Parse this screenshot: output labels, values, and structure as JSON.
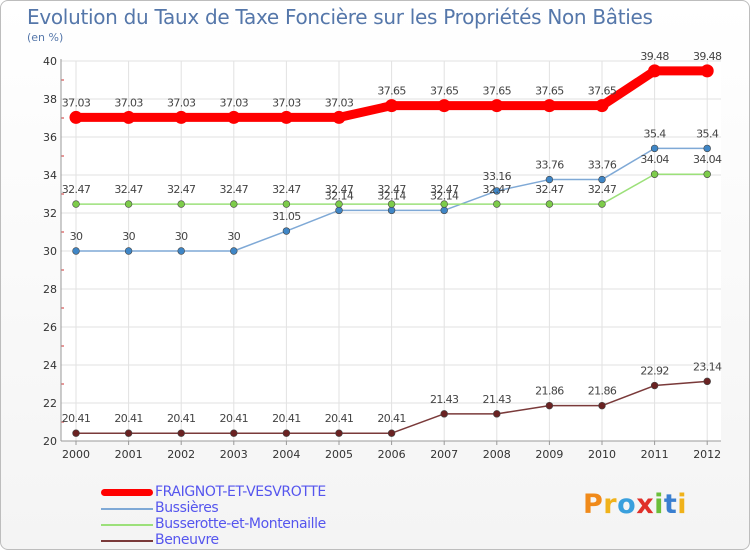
{
  "chart_data": {
    "type": "line",
    "title": "Evolution du Taux de Taxe Foncière sur les Propriétés Non Bâties",
    "ylabel": "(en %)",
    "xlabel": "",
    "categories": [
      "2000",
      "2001",
      "2002",
      "2003",
      "2004",
      "2005",
      "2006",
      "2007",
      "2008",
      "2009",
      "2010",
      "2011",
      "2012"
    ],
    "ylim": [
      20,
      40
    ],
    "yticks": [
      20,
      22,
      24,
      26,
      28,
      30,
      32,
      34,
      36,
      38,
      40
    ],
    "grid": true,
    "legend_position": "bottom-left",
    "series": [
      {
        "name": "FRAIGNOT-ET-VESVROTTE",
        "color": "#ff0000",
        "marker": "#ff0000",
        "width": "thick",
        "values": [
          37.03,
          37.03,
          37.03,
          37.03,
          37.03,
          37.03,
          37.65,
          37.65,
          37.65,
          37.65,
          37.65,
          39.48,
          39.48
        ],
        "labels": [
          "37.03",
          "37.03",
          "37.03",
          "37.03",
          "37.03",
          "37.03",
          "37.65",
          "37.65",
          "37.65",
          "37.65",
          "37.65",
          "39.48",
          "39.48"
        ]
      },
      {
        "name": "Bussières",
        "color": "#7fa9d6",
        "marker": "#3f86c6",
        "width": "thin",
        "values": [
          30,
          30,
          30,
          30,
          31.05,
          32.14,
          32.14,
          32.14,
          33.16,
          33.76,
          33.76,
          35.4,
          35.4
        ],
        "labels": [
          "30",
          "30",
          "30",
          "30",
          "31.05",
          "32.14",
          "32.14",
          "32.14",
          "33.16",
          "33.76",
          "33.76",
          "35.4",
          "35.4"
        ]
      },
      {
        "name": "Busserotte-et-Montenaille",
        "color": "#9ce07a",
        "marker": "#7dcc4a",
        "width": "thin",
        "values": [
          32.47,
          32.47,
          32.47,
          32.47,
          32.47,
          32.47,
          32.47,
          32.47,
          32.47,
          32.47,
          32.47,
          34.04,
          34.04
        ],
        "labels": [
          "32.47",
          "32.47",
          "32.47",
          "32.47",
          "32.47",
          "32.47",
          "32.47",
          "32.47",
          "32.47",
          "32.47",
          "32.47",
          "34.04",
          "34.04"
        ]
      },
      {
        "name": "Beneuvre",
        "color": "#7a3a3a",
        "marker": "#6a2222",
        "width": "thin",
        "values": [
          20.41,
          20.41,
          20.41,
          20.41,
          20.41,
          20.41,
          20.41,
          21.43,
          21.43,
          21.86,
          21.86,
          22.92,
          23.14
        ],
        "labels": [
          "20.41",
          "20.41",
          "20.41",
          "20.41",
          "20.41",
          "20.41",
          "20.41",
          "21.43",
          "21.43",
          "21.86",
          "21.86",
          "22.92",
          "23.14"
        ]
      }
    ]
  },
  "legend": [
    {
      "label": "FRAIGNOT-ET-VESVROTTE",
      "color": "#ff0000"
    },
    {
      "label": "Bussières",
      "color": "#7fa9d6"
    },
    {
      "label": "Busserotte-et-Montenaille",
      "color": "#9ce07a"
    },
    {
      "label": "Beneuvre",
      "color": "#7a3a3a"
    }
  ],
  "logo": {
    "text": "Proxiti",
    "letters": [
      {
        "ch": "P",
        "color": "#f08a1a"
      },
      {
        "ch": "r",
        "color": "#f0b21a"
      },
      {
        "ch": "o",
        "color": "#3aa0dd"
      },
      {
        "ch": "x",
        "color": "#e0302a"
      },
      {
        "ch": "i",
        "color": "#6cbf3a"
      },
      {
        "ch": "t",
        "color": "#3a7fd0"
      },
      {
        "ch": "i",
        "color": "#f0b21a"
      }
    ]
  }
}
